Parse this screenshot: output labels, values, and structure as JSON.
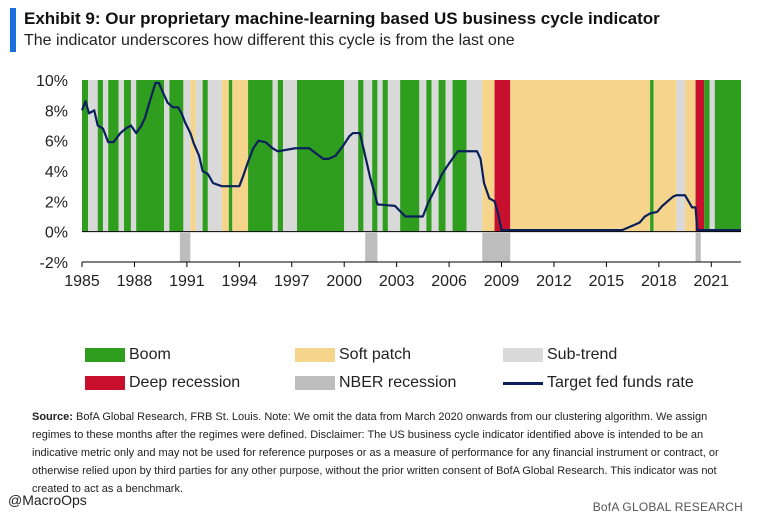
{
  "header": {
    "title": "Exhibit 9: Our proprietary machine-learning based US business cycle indicator",
    "subtitle": "The indicator underscores how different this cycle is from the last one"
  },
  "watermark": "@MacroOps",
  "legend": [
    {
      "label": "Boom",
      "color": "#2f9e1f",
      "kind": "box"
    },
    {
      "label": "Soft patch",
      "color": "#f5d58c",
      "kind": "box"
    },
    {
      "label": "Sub-trend",
      "color": "#d9d9d9",
      "kind": "box"
    },
    {
      "label": "Deep recession",
      "color": "#c8102e",
      "kind": "box"
    },
    {
      "label": "NBER recession",
      "color": "#bdbdbd",
      "kind": "box"
    },
    {
      "label": "Target fed funds rate",
      "color": "#0b1f5c",
      "kind": "line"
    }
  ],
  "source": {
    "label": "Source:",
    "text": "BofA Global Research, FRB St. Louis. Note: We omit the data from March 2020 onwards from our clustering algorithm. We assign regimes to these months after the regimes were defined. Disclaimer: The US business cycle indicator identified above is intended to be an indicative metric only and may not be used for reference purposes or as a measure of performance for any financial instrument or contract, or otherwise relied upon by third parties for any other purpose, without the prior written consent of BofA Global Research. This indicator was not created to act as a benchmark."
  },
  "footer": {
    "handle": "@MacroOps",
    "brand": "BofA GLOBAL RESEARCH"
  },
  "chart_data": {
    "type": "line",
    "xlim": [
      1985,
      2022.7
    ],
    "ylim": [
      -2,
      10
    ],
    "x_ticks": [
      1985,
      1988,
      1991,
      1994,
      1997,
      2000,
      2003,
      2006,
      2009,
      2012,
      2015,
      2018,
      2021
    ],
    "y_ticks": [
      -2,
      0,
      2,
      4,
      6,
      8,
      10
    ],
    "y_tick_labels": [
      "-2%",
      "0%",
      "2%",
      "4%",
      "6%",
      "8%",
      "10%"
    ],
    "grid": false,
    "regime_colors": {
      "boom": "#2f9e1f",
      "soft": "#f5d58c",
      "sub": "#d9d9d9",
      "deep": "#c8102e"
    },
    "regimes": [
      {
        "start": 1985.0,
        "end": 1985.35,
        "regime": "boom"
      },
      {
        "start": 1985.35,
        "end": 1985.9,
        "regime": "sub"
      },
      {
        "start": 1985.9,
        "end": 1986.2,
        "regime": "boom"
      },
      {
        "start": 1986.2,
        "end": 1986.5,
        "regime": "sub"
      },
      {
        "start": 1986.5,
        "end": 1987.1,
        "regime": "boom"
      },
      {
        "start": 1987.1,
        "end": 1987.4,
        "regime": "sub"
      },
      {
        "start": 1987.4,
        "end": 1987.8,
        "regime": "boom"
      },
      {
        "start": 1987.8,
        "end": 1988.1,
        "regime": "sub"
      },
      {
        "start": 1988.1,
        "end": 1989.7,
        "regime": "boom"
      },
      {
        "start": 1989.7,
        "end": 1990.0,
        "regime": "sub"
      },
      {
        "start": 1990.0,
        "end": 1990.8,
        "regime": "boom"
      },
      {
        "start": 1990.8,
        "end": 1991.2,
        "regime": "sub"
      },
      {
        "start": 1991.2,
        "end": 1991.5,
        "regime": "soft"
      },
      {
        "start": 1991.5,
        "end": 1991.9,
        "regime": "sub"
      },
      {
        "start": 1991.9,
        "end": 1992.2,
        "regime": "boom"
      },
      {
        "start": 1992.2,
        "end": 1993.0,
        "regime": "sub"
      },
      {
        "start": 1993.0,
        "end": 1993.4,
        "regime": "soft"
      },
      {
        "start": 1993.4,
        "end": 1993.6,
        "regime": "boom"
      },
      {
        "start": 1993.6,
        "end": 1994.5,
        "regime": "soft"
      },
      {
        "start": 1994.5,
        "end": 1995.9,
        "regime": "boom"
      },
      {
        "start": 1995.9,
        "end": 1996.2,
        "regime": "sub"
      },
      {
        "start": 1996.2,
        "end": 1996.5,
        "regime": "boom"
      },
      {
        "start": 1996.5,
        "end": 1997.3,
        "regime": "sub"
      },
      {
        "start": 1997.3,
        "end": 2000.0,
        "regime": "boom"
      },
      {
        "start": 2000.0,
        "end": 2000.8,
        "regime": "sub"
      },
      {
        "start": 2000.8,
        "end": 2001.1,
        "regime": "boom"
      },
      {
        "start": 2001.1,
        "end": 2001.6,
        "regime": "sub"
      },
      {
        "start": 2001.6,
        "end": 2001.9,
        "regime": "boom"
      },
      {
        "start": 2001.9,
        "end": 2002.2,
        "regime": "sub"
      },
      {
        "start": 2002.2,
        "end": 2002.5,
        "regime": "boom"
      },
      {
        "start": 2002.5,
        "end": 2003.2,
        "regime": "sub"
      },
      {
        "start": 2003.2,
        "end": 2004.3,
        "regime": "boom"
      },
      {
        "start": 2004.3,
        "end": 2004.7,
        "regime": "sub"
      },
      {
        "start": 2004.7,
        "end": 2005.0,
        "regime": "boom"
      },
      {
        "start": 2005.0,
        "end": 2005.4,
        "regime": "sub"
      },
      {
        "start": 2005.4,
        "end": 2005.8,
        "regime": "boom"
      },
      {
        "start": 2005.8,
        "end": 2006.2,
        "regime": "sub"
      },
      {
        "start": 2006.2,
        "end": 2007.0,
        "regime": "boom"
      },
      {
        "start": 2007.0,
        "end": 2007.9,
        "regime": "sub"
      },
      {
        "start": 2007.9,
        "end": 2008.6,
        "regime": "soft"
      },
      {
        "start": 2008.6,
        "end": 2009.5,
        "regime": "deep"
      },
      {
        "start": 2009.5,
        "end": 2017.5,
        "regime": "soft"
      },
      {
        "start": 2017.5,
        "end": 2017.7,
        "regime": "boom"
      },
      {
        "start": 2017.7,
        "end": 2019.0,
        "regime": "soft"
      },
      {
        "start": 2019.0,
        "end": 2019.5,
        "regime": "sub"
      },
      {
        "start": 2019.5,
        "end": 2020.1,
        "regime": "soft"
      },
      {
        "start": 2020.1,
        "end": 2020.6,
        "regime": "deep"
      },
      {
        "start": 2020.6,
        "end": 2020.9,
        "regime": "boom"
      },
      {
        "start": 2020.9,
        "end": 2021.2,
        "regime": "sub"
      },
      {
        "start": 2021.2,
        "end": 2022.7,
        "regime": "boom"
      }
    ],
    "nber_recessions": [
      {
        "start": 1990.6,
        "end": 1991.2
      },
      {
        "start": 2001.2,
        "end": 2001.9
      },
      {
        "start": 2007.9,
        "end": 2009.5
      },
      {
        "start": 2020.1,
        "end": 2020.4
      }
    ],
    "series": [
      {
        "name": "Target fed funds rate",
        "color": "#0b1f5c",
        "x": [
          1985.0,
          1985.2,
          1985.4,
          1985.7,
          1985.9,
          1986.2,
          1986.5,
          1986.8,
          1987.2,
          1987.5,
          1987.8,
          1988.1,
          1988.4,
          1988.6,
          1988.8,
          1989.2,
          1989.4,
          1989.7,
          1989.9,
          1990.2,
          1990.5,
          1990.7,
          1990.9,
          1991.2,
          1991.4,
          1991.7,
          1991.9,
          1992.2,
          1992.5,
          1993.0,
          1994.0,
          1994.2,
          1994.5,
          1994.8,
          1995.1,
          1995.5,
          1995.9,
          1996.2,
          1997.2,
          1998.0,
          1998.8,
          1999.1,
          1999.5,
          1999.9,
          2000.3,
          2000.5,
          2000.9,
          2001.1,
          2001.3,
          2001.5,
          2001.7,
          2001.9,
          2002.9,
          2003.5,
          2004.5,
          2004.8,
          2005.2,
          2005.6,
          2006.0,
          2006.5,
          2007.6,
          2007.8,
          2008.0,
          2008.3,
          2008.6,
          2008.8,
          2009.0,
          2015.9,
          2016.9,
          2017.2,
          2017.5,
          2017.9,
          2018.2,
          2018.5,
          2018.8,
          2019.0,
          2019.5,
          2019.7,
          2019.9,
          2020.1,
          2020.2,
          2022.7
        ],
        "y": [
          8.0,
          8.6,
          7.8,
          8.0,
          7.0,
          6.8,
          5.9,
          5.9,
          6.5,
          6.8,
          7.0,
          6.5,
          7.0,
          7.5,
          8.3,
          9.8,
          9.8,
          9.0,
          8.5,
          8.2,
          8.2,
          7.8,
          7.2,
          6.5,
          5.8,
          5.0,
          4.0,
          3.8,
          3.2,
          3.0,
          3.0,
          3.6,
          4.6,
          5.5,
          6.0,
          5.9,
          5.5,
          5.3,
          5.5,
          5.5,
          4.8,
          4.8,
          5.0,
          5.6,
          6.3,
          6.5,
          6.5,
          5.5,
          4.5,
          3.5,
          2.7,
          1.8,
          1.7,
          1.0,
          1.0,
          1.9,
          2.8,
          3.8,
          4.5,
          5.3,
          5.3,
          4.8,
          3.2,
          2.2,
          2.0,
          1.2,
          0.1,
          0.1,
          0.6,
          1.0,
          1.2,
          1.3,
          1.7,
          2.0,
          2.3,
          2.4,
          2.4,
          2.0,
          1.6,
          1.6,
          0.1,
          0.1
        ]
      }
    ]
  }
}
